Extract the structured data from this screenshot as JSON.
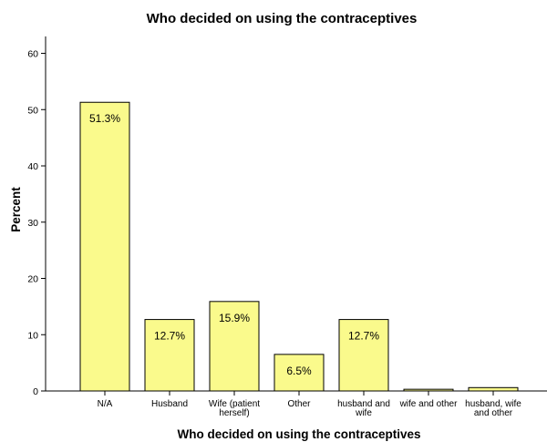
{
  "chart_data": {
    "type": "bar",
    "title": "Who decided on using the contraceptives",
    "xlabel": "Who decided on using the contraceptives",
    "ylabel": "Percent",
    "ylim": [
      0,
      63
    ],
    "yticks": [
      0,
      10,
      20,
      30,
      40,
      50,
      60
    ],
    "grid": false,
    "categories": [
      [
        "N/A"
      ],
      [
        "Husband"
      ],
      [
        "Wife (patient",
        "herself)"
      ],
      [
        "Other"
      ],
      [
        "husband and",
        "wife"
      ],
      [
        "wife and other"
      ],
      [
        "husband, wife",
        "and other"
      ]
    ],
    "values": [
      51.3,
      12.7,
      15.9,
      6.5,
      12.7,
      0.3,
      0.6
    ],
    "data_labels": [
      "51.3%",
      "12.7%",
      "15.9%",
      "6.5%",
      "12.7%",
      "",
      ""
    ],
    "colors": {
      "bar_fill": "#fafa8c",
      "bar_stroke": "#000000"
    }
  }
}
